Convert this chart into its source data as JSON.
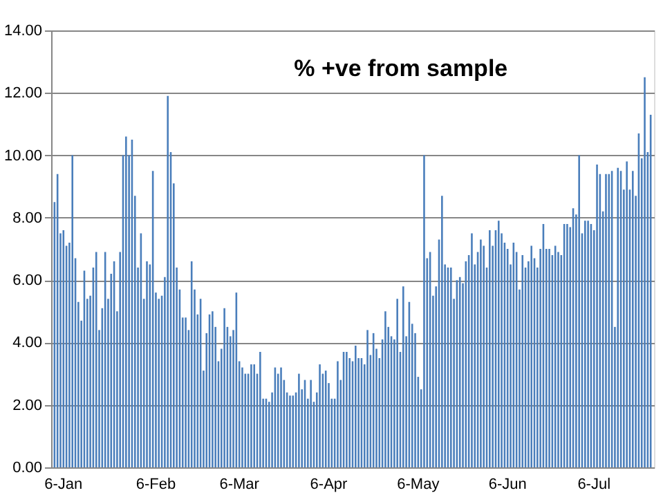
{
  "chart_data": {
    "type": "bar",
    "title": "% +ve from sample",
    "color": "#4a7ebb",
    "categories": [
      null,
      null,
      null,
      "6-Jan",
      null,
      null,
      null,
      null,
      null,
      null,
      null,
      null,
      null,
      null,
      null,
      null,
      null,
      null,
      null,
      null,
      null,
      null,
      null,
      null,
      null,
      null,
      null,
      null,
      null,
      null,
      null,
      null,
      null,
      null,
      "6-Feb",
      null,
      null,
      null,
      null,
      null,
      null,
      null,
      null,
      null,
      null,
      null,
      null,
      null,
      null,
      null,
      null,
      null,
      null,
      null,
      null,
      null,
      null,
      null,
      null,
      null,
      null,
      null,
      "6-Mar",
      null,
      null,
      null,
      null,
      null,
      null,
      null,
      null,
      null,
      null,
      null,
      null,
      null,
      null,
      null,
      null,
      null,
      null,
      null,
      null,
      null,
      null,
      null,
      null,
      null,
      null,
      null,
      null,
      null,
      "6-Apr",
      null,
      null,
      null,
      null,
      null,
      null,
      null,
      null,
      null,
      null,
      null,
      null,
      null,
      null,
      null,
      null,
      null,
      null,
      null,
      null,
      null,
      null,
      null,
      null,
      null,
      null,
      null,
      null,
      null,
      "6-May",
      null,
      null,
      null,
      null,
      null,
      null,
      null,
      null,
      null,
      null,
      null,
      null,
      null,
      null,
      null,
      null,
      null,
      null,
      null,
      null,
      null,
      null,
      null,
      null,
      null,
      null,
      null,
      null,
      null,
      "6-Jun",
      null,
      null,
      null,
      null,
      null,
      null,
      null,
      null,
      null,
      null,
      null,
      null,
      null,
      null,
      null,
      null,
      null,
      null,
      null,
      null,
      null,
      null,
      null,
      null,
      null,
      null,
      null,
      null,
      "6-Jul",
      null,
      null,
      null,
      null,
      null,
      null,
      null,
      null,
      null,
      null,
      null,
      null,
      null,
      null,
      null,
      null,
      null,
      null,
      null
    ],
    "values": [
      8.5,
      9.4,
      7.5,
      7.6,
      7.1,
      7.2,
      10.0,
      6.7,
      5.3,
      4.7,
      6.3,
      5.4,
      5.5,
      6.4,
      6.9,
      4.4,
      5.1,
      6.9,
      5.4,
      6.2,
      6.6,
      5.0,
      6.9,
      10.0,
      10.6,
      10.0,
      10.5,
      8.7,
      6.4,
      7.5,
      5.4,
      6.6,
      6.5,
      9.5,
      5.6,
      5.4,
      5.5,
      6.1,
      11.9,
      10.1,
      9.1,
      6.4,
      5.7,
      4.8,
      4.8,
      4.4,
      6.6,
      5.7,
      4.9,
      5.4,
      3.1,
      4.3,
      4.9,
      5.0,
      4.5,
      3.4,
      3.8,
      5.1,
      4.5,
      4.2,
      4.4,
      5.6,
      3.4,
      3.2,
      3.0,
      3.0,
      3.3,
      3.3,
      3.0,
      3.7,
      2.2,
      2.2,
      2.1,
      2.4,
      3.2,
      3.0,
      3.2,
      2.8,
      2.4,
      2.3,
      2.3,
      2.4,
      3.0,
      2.5,
      2.8,
      2.2,
      2.8,
      2.1,
      2.4,
      3.3,
      3.0,
      3.1,
      2.7,
      2.2,
      2.2,
      3.4,
      2.8,
      3.7,
      3.7,
      3.5,
      3.4,
      3.9,
      3.5,
      3.5,
      3.3,
      4.4,
      3.6,
      4.3,
      3.8,
      3.5,
      4.1,
      5.0,
      4.5,
      4.2,
      4.1,
      5.4,
      3.7,
      5.8,
      4.2,
      5.3,
      4.6,
      4.3,
      2.9,
      2.5,
      10.0,
      6.7,
      6.9,
      5.5,
      5.8,
      7.3,
      8.7,
      6.5,
      6.4,
      6.4,
      5.4,
      6.0,
      6.1,
      5.9,
      6.6,
      6.8,
      7.5,
      6.5,
      6.9,
      7.3,
      7.1,
      6.4,
      7.6,
      7.1,
      7.6,
      7.9,
      7.5,
      7.2,
      7.0,
      6.5,
      7.2,
      6.9,
      5.7,
      6.8,
      6.4,
      6.6,
      7.1,
      6.7,
      6.4,
      7.0,
      7.8,
      7.0,
      7.0,
      6.8,
      7.1,
      6.9,
      6.8,
      7.8,
      7.8,
      7.7,
      8.3,
      8.1,
      10.0,
      7.5,
      7.9,
      7.9,
      7.8,
      7.6,
      9.7,
      9.4,
      8.2,
      9.4,
      9.4,
      9.5,
      4.5,
      9.6,
      9.5,
      8.9,
      9.8,
      8.9,
      9.5,
      8.7,
      10.7,
      9.9,
      12.5,
      10.1,
      11.3
    ],
    "ylim": [
      0,
      14
    ],
    "yticks": [
      {
        "value": 0,
        "label": "0.00"
      },
      {
        "value": 2,
        "label": "2.00"
      },
      {
        "value": 4,
        "label": "4.00"
      },
      {
        "value": 6,
        "label": "6.00"
      },
      {
        "value": 8,
        "label": "8.00"
      },
      {
        "value": 10,
        "label": "10.00"
      },
      {
        "value": 12,
        "label": "12.00"
      },
      {
        "value": 14,
        "label": "14.00"
      }
    ],
    "grid": "y"
  }
}
